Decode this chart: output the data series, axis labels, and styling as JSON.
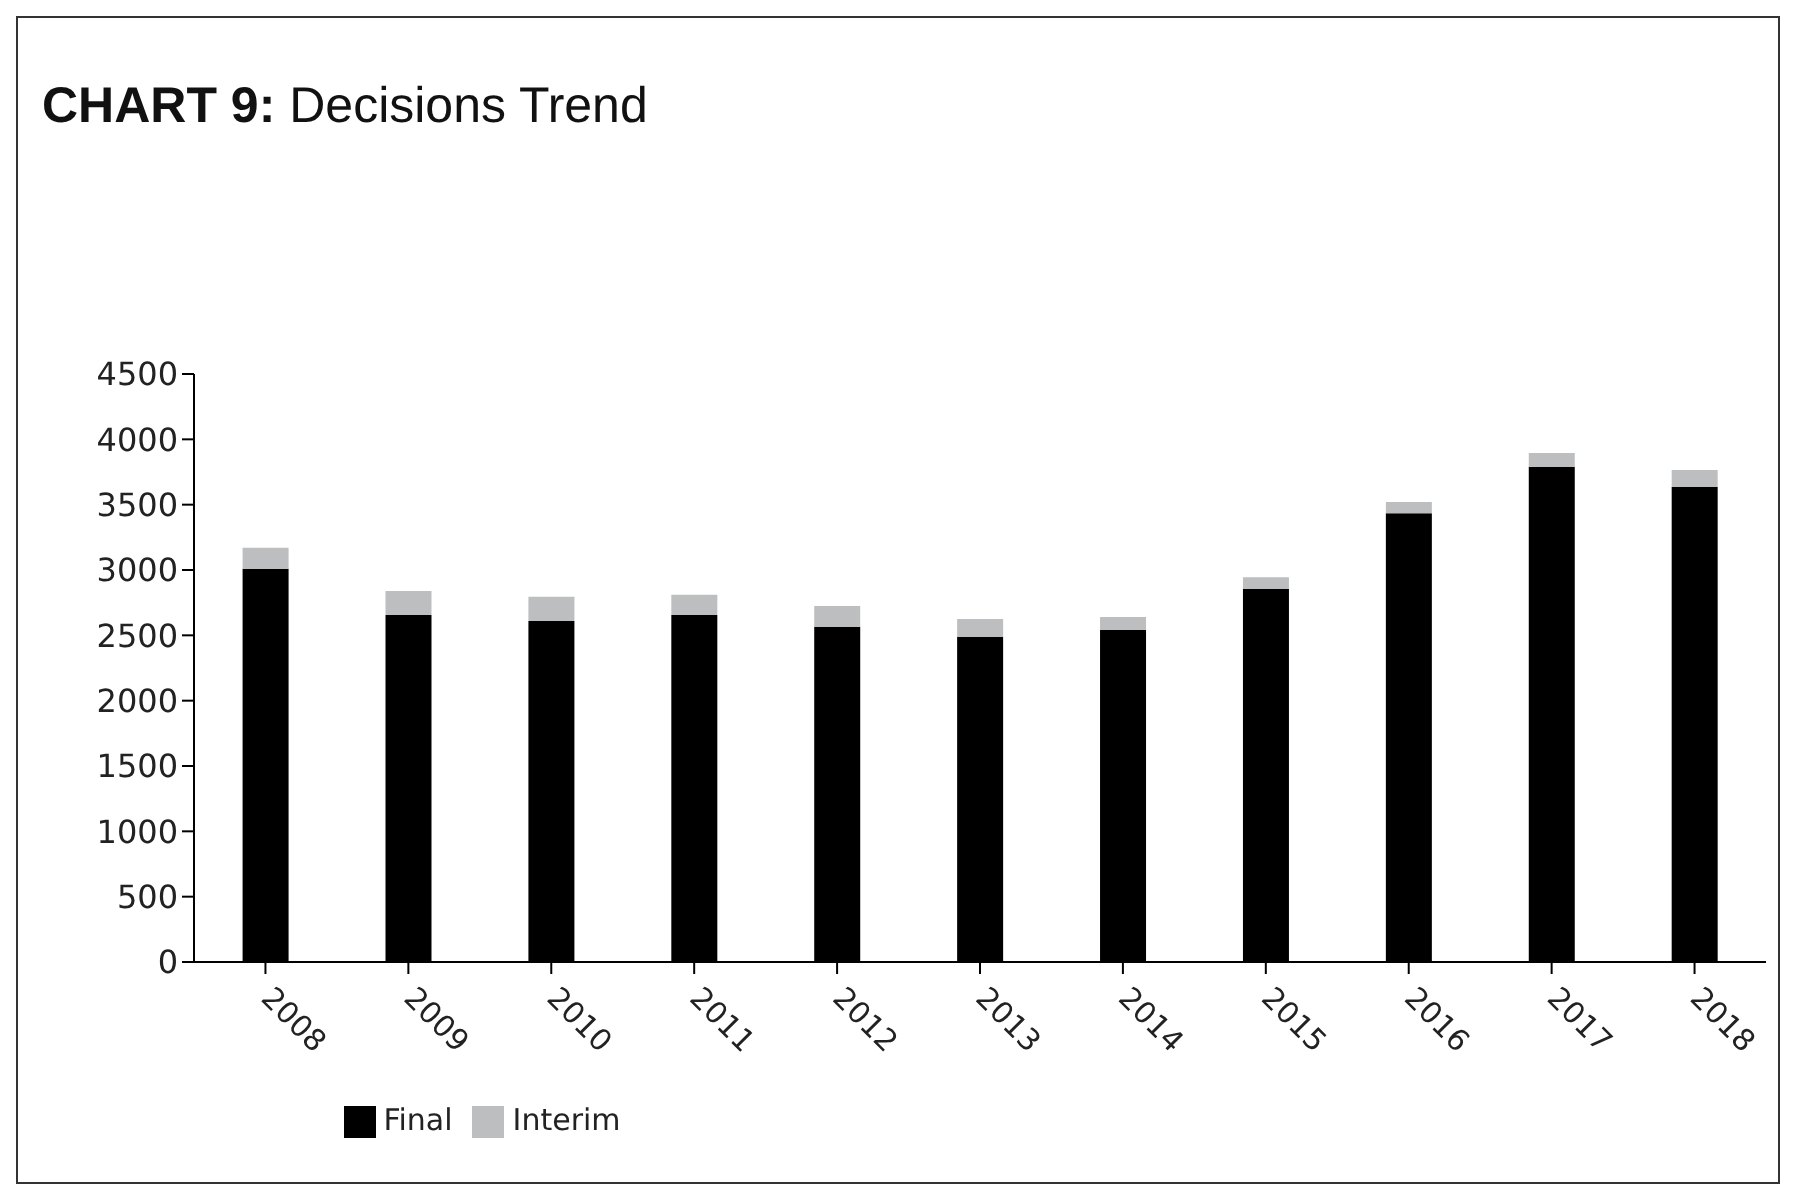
{
  "chart_data": {
    "type": "bar",
    "title": "CHART 9: Decisions Trend",
    "categories": [
      "2008",
      "2009",
      "2010",
      "2011",
      "2012",
      "2013",
      "2014",
      "2015",
      "2016",
      "2017",
      "2018"
    ],
    "stacked": true,
    "series": [
      {
        "name": "Final",
        "color": "#000000",
        "values": [
          3010,
          2655,
          2610,
          2655,
          2565,
          2490,
          2540,
          2855,
          3435,
          3790,
          3635
        ]
      },
      {
        "name": "Interim",
        "color": "#bdbec0",
        "values": [
          160,
          185,
          185,
          155,
          160,
          135,
          100,
          90,
          85,
          105,
          130
        ]
      }
    ],
    "ylim": [
      0,
      4500
    ],
    "yticks": [
      0,
      500,
      1000,
      1500,
      2000,
      2500,
      3000,
      3500,
      4000,
      4500
    ],
    "grid": false,
    "legend": "bottom"
  }
}
